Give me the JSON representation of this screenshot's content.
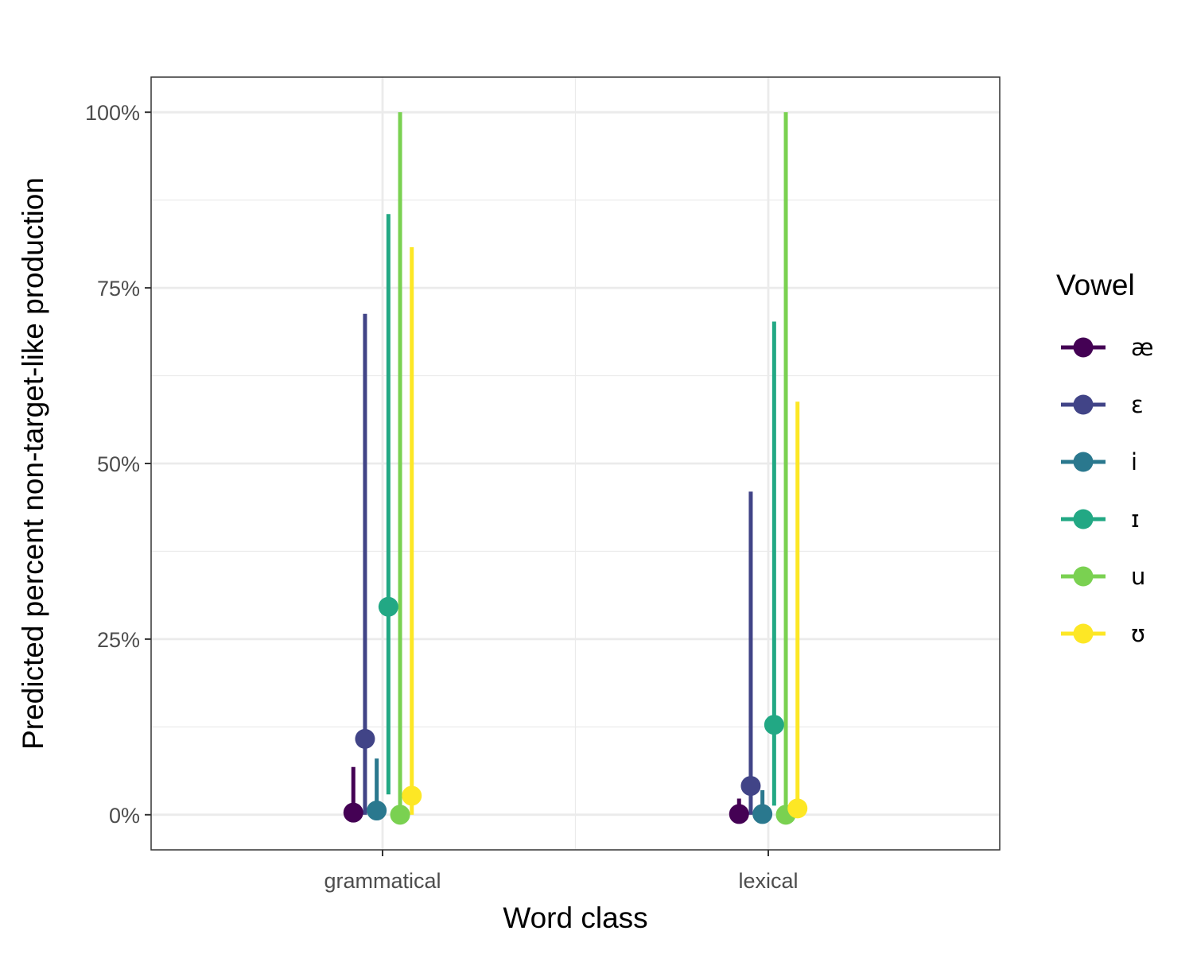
{
  "chart_data": {
    "type": "pointrange",
    "xlabel": "Word class",
    "ylabel": "Predicted percent non-target-like production",
    "categories": [
      "grammatical",
      "lexical"
    ],
    "y_ticks": [
      0,
      0.25,
      0.5,
      0.75,
      1.0
    ],
    "y_tick_labels": [
      "0%",
      "25%",
      "50%",
      "75%",
      "100%"
    ],
    "ylim": [
      -0.05,
      1.05
    ],
    "grid": true,
    "legend": {
      "title": "Vowel",
      "position": "right"
    },
    "series": [
      {
        "name": "æ",
        "color": "#440154",
        "points": [
          {
            "category": "grammatical",
            "y": 0.003,
            "lower": 0.0,
            "upper": 0.068
          },
          {
            "category": "lexical",
            "y": 0.001,
            "lower": 0.0,
            "upper": 0.023
          }
        ]
      },
      {
        "name": "ɛ",
        "color": "#414487",
        "points": [
          {
            "category": "grammatical",
            "y": 0.108,
            "lower": 0.0,
            "upper": 0.713
          },
          {
            "category": "lexical",
            "y": 0.041,
            "lower": 0.0,
            "upper": 0.46
          }
        ]
      },
      {
        "name": "i",
        "color": "#2A788E",
        "points": [
          {
            "category": "grammatical",
            "y": 0.006,
            "lower": 0.0,
            "upper": 0.08
          },
          {
            "category": "lexical",
            "y": 0.001,
            "lower": 0.0,
            "upper": 0.035
          }
        ]
      },
      {
        "name": "ɪ",
        "color": "#22A884",
        "points": [
          {
            "category": "grammatical",
            "y": 0.296,
            "lower": 0.029,
            "upper": 0.855
          },
          {
            "category": "lexical",
            "y": 0.128,
            "lower": 0.013,
            "upper": 0.702
          }
        ]
      },
      {
        "name": "u",
        "color": "#7AD151",
        "points": [
          {
            "category": "grammatical",
            "y": 0.0,
            "lower": 0.0,
            "upper": 1.0
          },
          {
            "category": "lexical",
            "y": 0.0,
            "lower": 0.0,
            "upper": 1.0
          }
        ]
      },
      {
        "name": "ʊ",
        "color": "#FDE725",
        "points": [
          {
            "category": "grammatical",
            "y": 0.027,
            "lower": 0.0,
            "upper": 0.808
          },
          {
            "category": "lexical",
            "y": 0.009,
            "lower": 0.0,
            "upper": 0.588
          }
        ]
      }
    ]
  }
}
